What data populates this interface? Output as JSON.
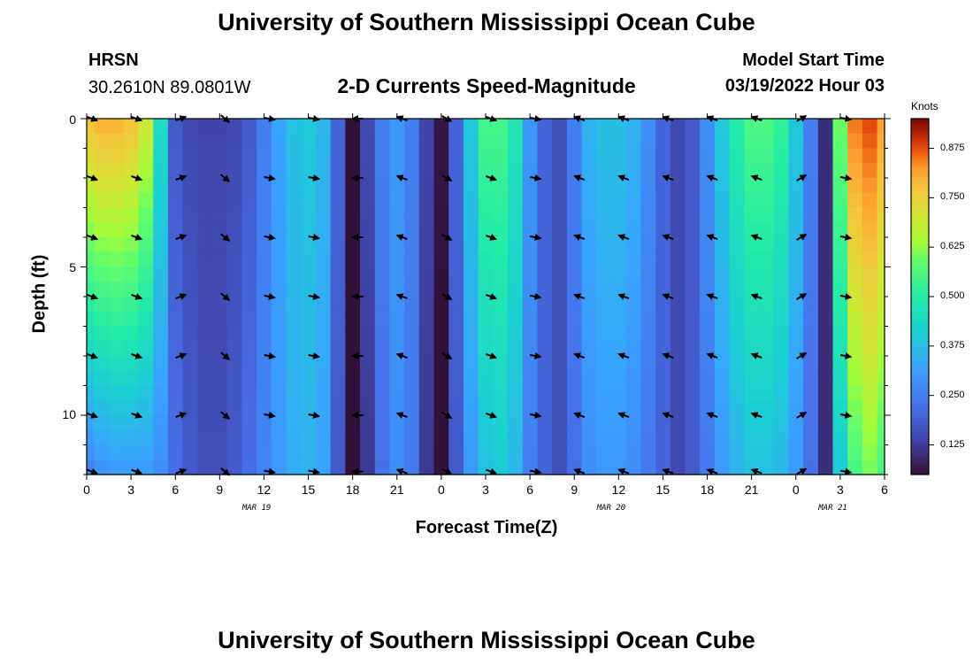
{
  "page": {
    "title_top": "University of Southern Mississippi Ocean Cube",
    "title_bottom": "University of Southern Mississippi Ocean Cube",
    "station": "HRSN",
    "coords": "30.2610N  89.0801W",
    "plot_title": "2-D Currents Speed-Magnitude",
    "model_label": "Model Start Time",
    "model_time": "03/19/2022 Hour 03"
  },
  "chart_data": {
    "type": "heatmap",
    "title": "2-D Currents Speed-Magnitude",
    "xlabel": "Forecast Time(Z)",
    "ylabel": "Depth (ft)",
    "x_hours_range": [
      0,
      54
    ],
    "ylim": [
      0,
      12
    ],
    "y_ticks": [
      0,
      5,
      10
    ],
    "x_tick_labels": [
      "0",
      "3",
      "6",
      "9",
      "12",
      "15",
      "18",
      "21",
      "0",
      "3",
      "6",
      "9",
      "12",
      "15",
      "18",
      "21",
      "0",
      "3",
      "6"
    ],
    "date_labels": [
      {
        "label": "MAR 19",
        "hour": 11.5
      },
      {
        "label": "MAR 20",
        "hour": 35.5
      },
      {
        "label": "MAR 21",
        "hour": 50.5
      }
    ],
    "colorbar": {
      "title": "Knots",
      "range": [
        0.05,
        0.95
      ],
      "ticks": [
        "0.875",
        "0.750",
        "0.625",
        "0.500",
        "0.375",
        "0.250",
        "0.125"
      ],
      "tick_values": [
        0.875,
        0.75,
        0.625,
        0.5,
        0.375,
        0.25,
        0.125
      ]
    },
    "speed_profile_hours": [
      0,
      1,
      2,
      3,
      4,
      5,
      6,
      7,
      8,
      9,
      10,
      11,
      12,
      13,
      14,
      15,
      16,
      17,
      18,
      19,
      20,
      21,
      22,
      23,
      24,
      25,
      26,
      27,
      28,
      29,
      30,
      31,
      32,
      33,
      34,
      35,
      36,
      37,
      38,
      39,
      40,
      41,
      42,
      43,
      44,
      45,
      46,
      47,
      48,
      49,
      50,
      51,
      52,
      53,
      54
    ],
    "speed_surface": [
      0.78,
      0.8,
      0.8,
      0.78,
      0.7,
      0.45,
      0.18,
      0.15,
      0.14,
      0.14,
      0.15,
      0.18,
      0.25,
      0.32,
      0.38,
      0.4,
      0.36,
      0.2,
      0.05,
      0.15,
      0.25,
      0.3,
      0.25,
      0.14,
      0.06,
      0.2,
      0.4,
      0.55,
      0.55,
      0.48,
      0.3,
      0.2,
      0.16,
      0.25,
      0.35,
      0.38,
      0.38,
      0.35,
      0.28,
      0.2,
      0.15,
      0.18,
      0.28,
      0.4,
      0.5,
      0.56,
      0.56,
      0.52,
      0.4,
      0.25,
      0.1,
      0.6,
      0.85,
      0.88,
      0.82
    ],
    "speed_bottom": [
      0.25,
      0.28,
      0.3,
      0.3,
      0.3,
      0.28,
      0.22,
      0.18,
      0.16,
      0.16,
      0.18,
      0.22,
      0.26,
      0.3,
      0.34,
      0.35,
      0.32,
      0.18,
      0.05,
      0.12,
      0.22,
      0.28,
      0.24,
      0.12,
      0.04,
      0.18,
      0.3,
      0.38,
      0.4,
      0.36,
      0.25,
      0.2,
      0.16,
      0.22,
      0.28,
      0.3,
      0.3,
      0.28,
      0.24,
      0.2,
      0.15,
      0.18,
      0.24,
      0.3,
      0.35,
      0.38,
      0.38,
      0.36,
      0.3,
      0.22,
      0.1,
      0.4,
      0.55,
      0.6,
      0.55
    ],
    "vector_rows_depth": [
      0,
      2,
      4,
      6,
      8,
      10,
      11.9
    ],
    "vector_hours": [
      0,
      3,
      6,
      9,
      12,
      15,
      18,
      21,
      24,
      27,
      30,
      33,
      36,
      39,
      42,
      45,
      48,
      51
    ],
    "vector_directions_deg": [
      20,
      20,
      -20,
      40,
      10,
      10,
      180,
      200,
      30,
      20,
      10,
      200,
      200,
      200,
      200,
      200,
      -30,
      10
    ]
  }
}
